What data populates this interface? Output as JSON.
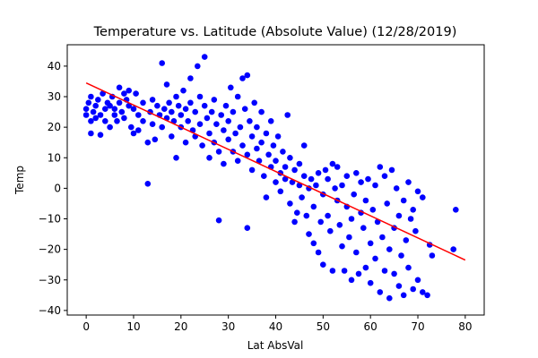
{
  "chart_data": {
    "type": "scatter",
    "title": "Temperature vs. Latitude (Absolute Value) (12/28/2019)",
    "xlabel": "Lat AbsVal",
    "ylabel": "Temp",
    "xlim": [
      -4,
      84
    ],
    "ylim": [
      -41.5,
      47
    ],
    "xticks": [
      0,
      10,
      20,
      30,
      40,
      50,
      60,
      70,
      80
    ],
    "yticks": [
      -40,
      -30,
      -20,
      -10,
      0,
      10,
      20,
      30,
      40
    ],
    "grid": false,
    "legend": "none",
    "point_color": "#0000ff",
    "line_color": "#ff0000",
    "regression_line": {
      "x": [
        0,
        80
      ],
      "y": [
        34.5,
        -23.5
      ]
    },
    "series": [
      {
        "points": [
          [
            0,
            26
          ],
          [
            0,
            24
          ],
          [
            0.5,
            28
          ],
          [
            1,
            30
          ],
          [
            1,
            22
          ],
          [
            1,
            18
          ],
          [
            1.5,
            25
          ],
          [
            2,
            27
          ],
          [
            2,
            23
          ],
          [
            2.5,
            29
          ],
          [
            3,
            24
          ],
          [
            3,
            17.5
          ],
          [
            3.5,
            31
          ],
          [
            4,
            26
          ],
          [
            4,
            22
          ],
          [
            4.5,
            28
          ],
          [
            5,
            27
          ],
          [
            5,
            20
          ],
          [
            5.5,
            30
          ],
          [
            6,
            24
          ],
          [
            6,
            26
          ],
          [
            6.5,
            22
          ],
          [
            7,
            33
          ],
          [
            7,
            28
          ],
          [
            7.5,
            25
          ],
          [
            8,
            31
          ],
          [
            8,
            23
          ],
          [
            8.5,
            29
          ],
          [
            9,
            32
          ],
          [
            9,
            27
          ],
          [
            9.5,
            20
          ],
          [
            10,
            26
          ],
          [
            10,
            18
          ],
          [
            10.5,
            31
          ],
          [
            11,
            24
          ],
          [
            11,
            19
          ],
          [
            12,
            28
          ],
          [
            12,
            22
          ],
          [
            13,
            15
          ],
          [
            13,
            1.5
          ],
          [
            13.5,
            25
          ],
          [
            14,
            29
          ],
          [
            14,
            21
          ],
          [
            14.5,
            16
          ],
          [
            15,
            27
          ],
          [
            15.5,
            24
          ],
          [
            16,
            41
          ],
          [
            16,
            20
          ],
          [
            16.5,
            26
          ],
          [
            17,
            34
          ],
          [
            17,
            23
          ],
          [
            17.5,
            28
          ],
          [
            18,
            17
          ],
          [
            18,
            25
          ],
          [
            18.5,
            22
          ],
          [
            19,
            30
          ],
          [
            19,
            10
          ],
          [
            19.5,
            27
          ],
          [
            20,
            24
          ],
          [
            20,
            20
          ],
          [
            20.5,
            32
          ],
          [
            21,
            26
          ],
          [
            21,
            15
          ],
          [
            21.5,
            22
          ],
          [
            22,
            36
          ],
          [
            22,
            28
          ],
          [
            22.5,
            19
          ],
          [
            23,
            25
          ],
          [
            23,
            17
          ],
          [
            23.5,
            40
          ],
          [
            24,
            30
          ],
          [
            24,
            21
          ],
          [
            24.5,
            14
          ],
          [
            25,
            27
          ],
          [
            25,
            43
          ],
          [
            25.5,
            23
          ],
          [
            26,
            18
          ],
          [
            26,
            10
          ],
          [
            26.5,
            25
          ],
          [
            27,
            29
          ],
          [
            27,
            15
          ],
          [
            27.5,
            21
          ],
          [
            28,
            12
          ],
          [
            28,
            -10.5
          ],
          [
            28.5,
            24
          ],
          [
            29,
            19
          ],
          [
            29,
            8
          ],
          [
            29.5,
            27
          ],
          [
            30,
            16
          ],
          [
            30,
            22
          ],
          [
            30.5,
            33
          ],
          [
            31,
            12
          ],
          [
            31,
            25
          ],
          [
            31.5,
            18
          ],
          [
            32,
            30
          ],
          [
            32,
            9
          ],
          [
            32.5,
            20
          ],
          [
            33,
            36
          ],
          [
            33,
            14
          ],
          [
            33.5,
            26
          ],
          [
            34,
            37
          ],
          [
            34,
            11
          ],
          [
            34,
            -13
          ],
          [
            34.5,
            22
          ],
          [
            35,
            17
          ],
          [
            35,
            6
          ],
          [
            35.5,
            28
          ],
          [
            36,
            13
          ],
          [
            36,
            20
          ],
          [
            36.5,
            9
          ],
          [
            37,
            25
          ],
          [
            37,
            15
          ],
          [
            37.5,
            4
          ],
          [
            38,
            18
          ],
          [
            38,
            -3
          ],
          [
            38.5,
            11
          ],
          [
            39,
            22
          ],
          [
            39,
            7
          ],
          [
            39.5,
            14
          ],
          [
            40,
            2
          ],
          [
            40,
            9
          ],
          [
            40.5,
            17
          ],
          [
            41,
            5
          ],
          [
            41,
            -1
          ],
          [
            41.5,
            12
          ],
          [
            42,
            7
          ],
          [
            42,
            3
          ],
          [
            42.5,
            24
          ],
          [
            43,
            10
          ],
          [
            43,
            -5
          ],
          [
            43.5,
            2
          ],
          [
            44,
            -11
          ],
          [
            44,
            6
          ],
          [
            44.5,
            -8
          ],
          [
            45,
            1
          ],
          [
            45,
            8
          ],
          [
            45.5,
            -3
          ],
          [
            46,
            14
          ],
          [
            46,
            4
          ],
          [
            46.5,
            -9
          ],
          [
            47,
            0
          ],
          [
            47,
            -15
          ],
          [
            47.5,
            3
          ],
          [
            48,
            -6
          ],
          [
            48,
            -18
          ],
          [
            48.5,
            1
          ],
          [
            49,
            -21
          ],
          [
            49,
            5
          ],
          [
            49.5,
            -11
          ],
          [
            50,
            -2
          ],
          [
            50,
            -25
          ],
          [
            50.5,
            6
          ],
          [
            51,
            -9
          ],
          [
            51,
            3
          ],
          [
            51.5,
            -14
          ],
          [
            52,
            8
          ],
          [
            52,
            -27
          ],
          [
            52.5,
            0
          ],
          [
            53,
            -4
          ],
          [
            53,
            7
          ],
          [
            53.5,
            -12
          ],
          [
            54,
            -19
          ],
          [
            54,
            1
          ],
          [
            54.5,
            -27
          ],
          [
            55,
            -6
          ],
          [
            55,
            4
          ],
          [
            55.5,
            -16
          ],
          [
            56,
            -10
          ],
          [
            56,
            -30
          ],
          [
            56.5,
            -2
          ],
          [
            57,
            5
          ],
          [
            57,
            -21
          ],
          [
            57.5,
            -28
          ],
          [
            58,
            -8
          ],
          [
            58,
            2
          ],
          [
            58.5,
            -13
          ],
          [
            59,
            -26
          ],
          [
            59,
            -4
          ],
          [
            59.5,
            3
          ],
          [
            60,
            -18
          ],
          [
            60,
            -31
          ],
          [
            60.5,
            -7
          ],
          [
            61,
            1
          ],
          [
            61,
            -23
          ],
          [
            61.5,
            -11
          ],
          [
            62,
            -34
          ],
          [
            62,
            7
          ],
          [
            62.5,
            -16
          ],
          [
            63,
            -27
          ],
          [
            63,
            4
          ],
          [
            63.5,
            -5
          ],
          [
            64,
            -20
          ],
          [
            64,
            -36
          ],
          [
            64.5,
            6
          ],
          [
            65,
            -13
          ],
          [
            65,
            -28
          ],
          [
            65.5,
            0
          ],
          [
            66,
            -9
          ],
          [
            66,
            -32
          ],
          [
            66.5,
            -22
          ],
          [
            67,
            -4
          ],
          [
            67,
            -35
          ],
          [
            67.5,
            -17
          ],
          [
            68,
            2
          ],
          [
            68,
            -26
          ],
          [
            68.5,
            -10
          ],
          [
            69,
            -33
          ],
          [
            69,
            -7
          ],
          [
            69.5,
            -14
          ],
          [
            70,
            -30
          ],
          [
            70,
            -1
          ],
          [
            71,
            -3
          ],
          [
            71,
            -34
          ],
          [
            72,
            -35
          ],
          [
            72.5,
            -18.5
          ],
          [
            73,
            -22
          ],
          [
            77.5,
            -20
          ],
          [
            78,
            -7
          ]
        ]
      }
    ]
  }
}
